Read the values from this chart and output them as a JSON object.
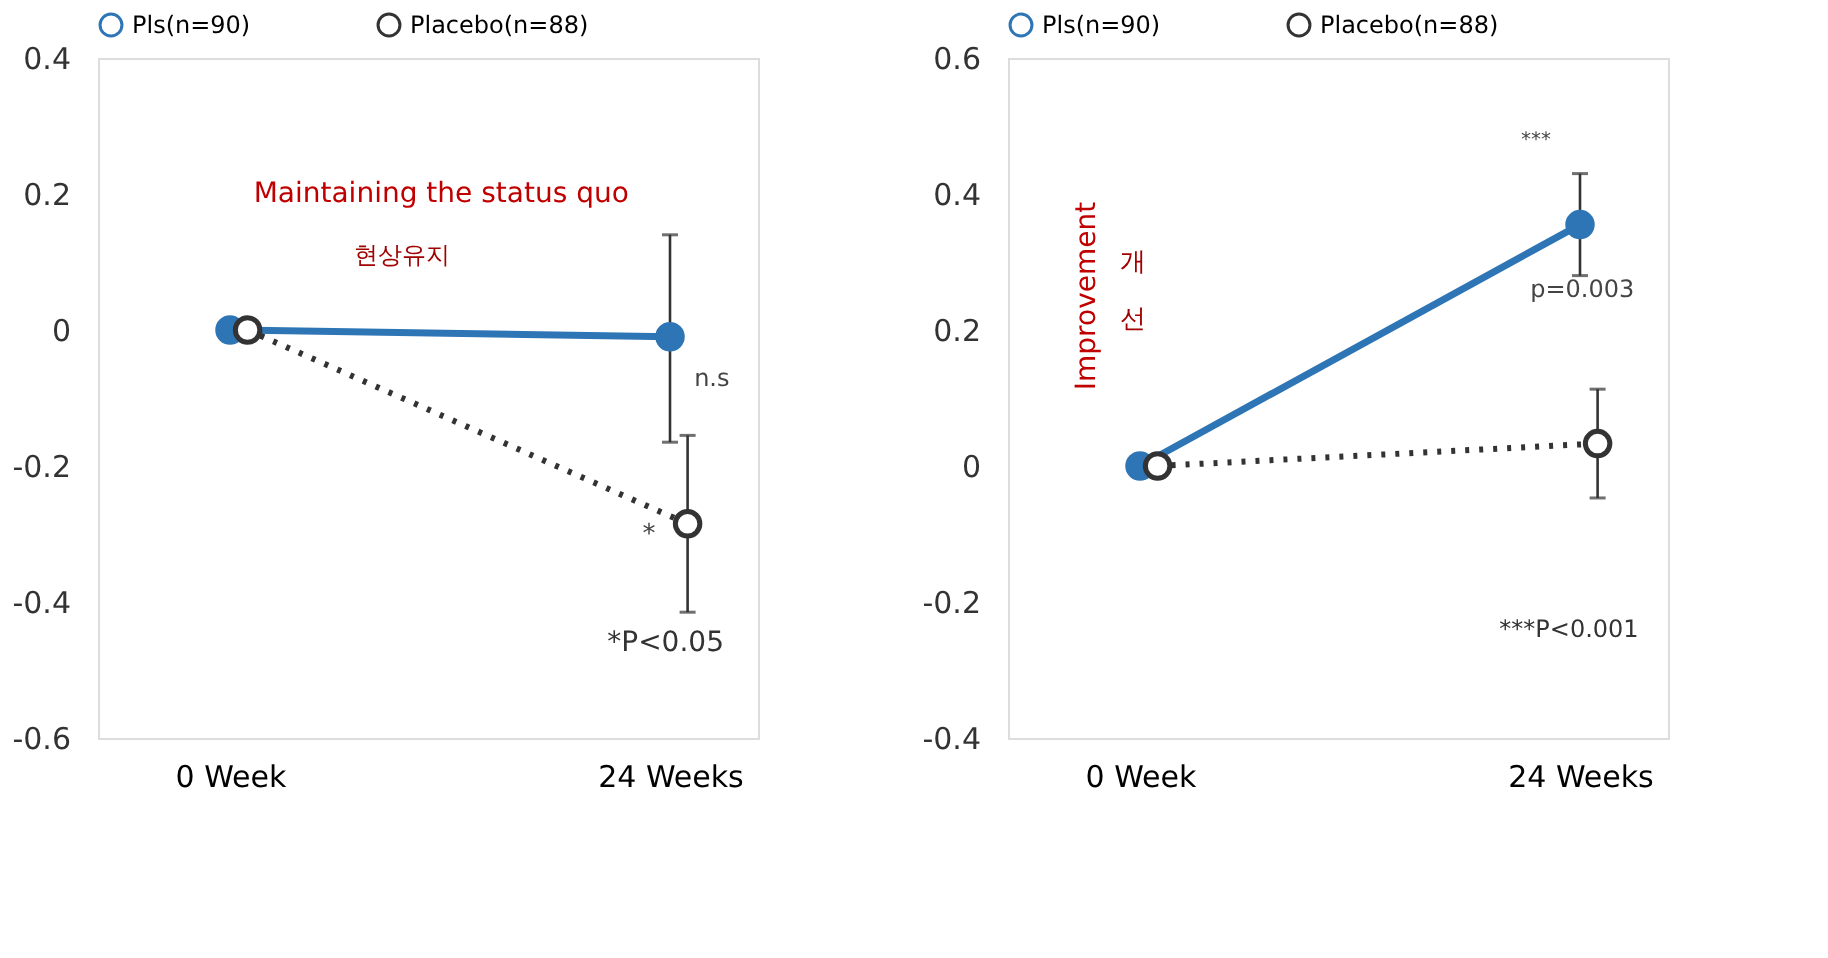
{
  "chart_data": [
    {
      "type": "line",
      "categories": [
        "0 Week",
        "24 Weeks"
      ],
      "ylim": [
        -0.6,
        0.4
      ],
      "yticks": [
        -0.6,
        -0.4,
        -0.2,
        {
          "value": 0,
          "label": "0"
        },
        0.2,
        0.4
      ],
      "grid": false,
      "legend": "top",
      "marker": "circle",
      "series": [
        {
          "name": "Pls(n=90)",
          "color": "#2e75b6",
          "line_style": "solid",
          "values": [
            0,
            -0.01
          ],
          "errors": [
            null,
            [
              -0.165,
              0.14
            ]
          ]
        },
        {
          "name": "Placebo(n=88)",
          "color": "#333333",
          "line_style": "dotted",
          "values": [
            0,
            -0.285
          ],
          "errors": [
            null,
            [
              -0.415,
              -0.155
            ]
          ]
        }
      ],
      "annotations": [
        "Maintaining the status quo",
        "현상유지",
        "*P<0.05",
        "n.s",
        "*"
      ]
    },
    {
      "type": "line",
      "categories": [
        "0 Week",
        "24 Weeks"
      ],
      "ylim": [
        -0.4,
        0.6
      ],
      "yticks": [
        -0.4,
        -0.2,
        {
          "value": 0,
          "label": "0"
        },
        0.2,
        0.4,
        0.6
      ],
      "grid": false,
      "legend": "top",
      "marker": "circle",
      "series": [
        {
          "name": "Pls(n=90)",
          "color": "#2e75b6",
          "line_style": "solid",
          "values": [
            0,
            0.355
          ],
          "errors": [
            null,
            [
              0.28,
              0.43
            ]
          ]
        },
        {
          "name": "Placebo(n=88)",
          "color": "#333333",
          "line_style": "dotted",
          "values": [
            0,
            0.033
          ],
          "errors": [
            null,
            [
              -0.047,
              0.113
            ]
          ]
        }
      ],
      "annotations": [
        "Improvement",
        "개선",
        "***P<0.001",
        "***",
        "p=0.003"
      ]
    }
  ]
}
